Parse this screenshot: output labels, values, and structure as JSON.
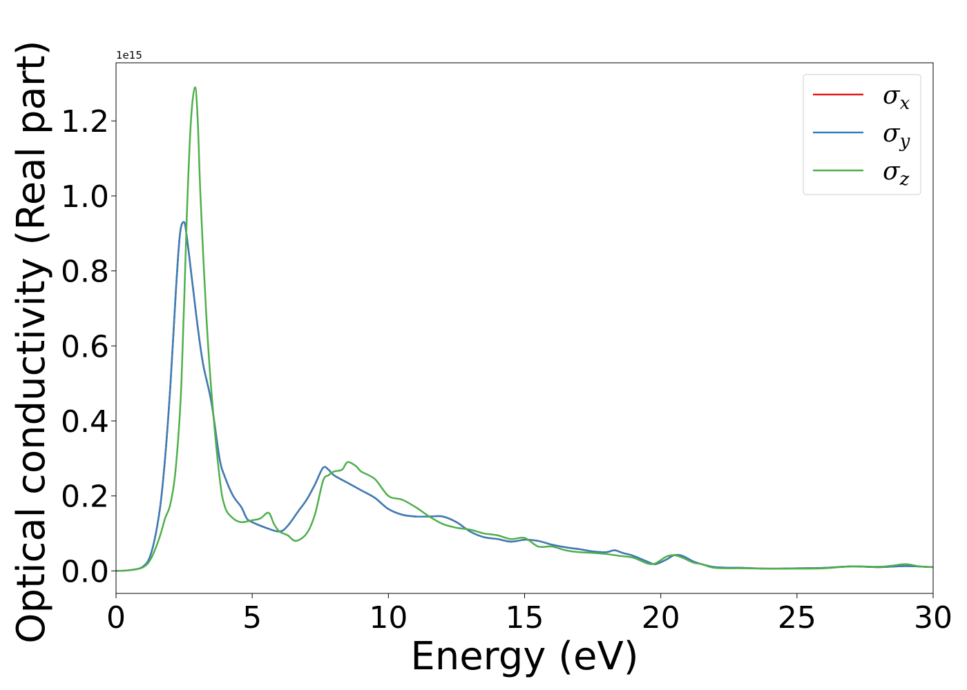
{
  "chart_data": {
    "type": "line",
    "title": "",
    "xlabel": "Energy (eV)",
    "ylabel": "Optical conductivity (Real part)",
    "y_offset_text": "1e15",
    "xlim": [
      0,
      30
    ],
    "ylim": [
      -0.06,
      1.355
    ],
    "x_ticks": [
      0,
      5,
      10,
      15,
      20,
      25,
      30
    ],
    "x_tick_labels": [
      "0",
      "5",
      "10",
      "15",
      "20",
      "25",
      "30"
    ],
    "y_ticks": [
      0.0,
      0.2,
      0.4,
      0.6,
      0.8,
      1.0,
      1.2
    ],
    "y_tick_labels": [
      "0.0",
      "0.2",
      "0.4",
      "0.6",
      "0.8",
      "1.0",
      "1.2"
    ],
    "grid": false,
    "legend_position": "top-right",
    "series": [
      {
        "name": "σx",
        "base": "σ",
        "sub": "x",
        "color": "#e41a1c",
        "x": [
          0,
          0.5,
          1.0,
          1.3,
          1.6,
          1.8,
          2.0,
          2.2,
          2.35,
          2.5,
          2.6,
          2.8,
          3.0,
          3.2,
          3.5,
          3.8,
          4.0,
          4.3,
          4.6,
          4.8,
          5.0,
          5.5,
          6.0,
          6.3,
          6.7,
          7.0,
          7.3,
          7.6,
          7.8,
          8.0,
          8.5,
          9.0,
          9.5,
          10.0,
          10.5,
          11.0,
          11.5,
          12.0,
          12.5,
          13.0,
          13.5,
          14.0,
          14.5,
          15.0,
          15.5,
          16.0,
          16.5,
          17.0,
          17.5,
          18.0,
          18.3,
          18.6,
          19.0,
          19.5,
          19.8,
          20.2,
          20.5,
          20.8,
          21.2,
          21.5,
          22.0,
          23.0,
          24.0,
          25.0,
          26.0,
          27.0,
          28.0,
          29.0,
          30.0
        ],
        "y": [
          0.0,
          0.002,
          0.012,
          0.05,
          0.16,
          0.3,
          0.5,
          0.75,
          0.9,
          0.93,
          0.89,
          0.77,
          0.65,
          0.55,
          0.45,
          0.3,
          0.25,
          0.2,
          0.17,
          0.14,
          0.13,
          0.115,
          0.105,
          0.12,
          0.16,
          0.19,
          0.23,
          0.275,
          0.27,
          0.255,
          0.235,
          0.215,
          0.195,
          0.165,
          0.15,
          0.145,
          0.145,
          0.145,
          0.13,
          0.105,
          0.09,
          0.085,
          0.078,
          0.083,
          0.08,
          0.07,
          0.063,
          0.058,
          0.052,
          0.05,
          0.055,
          0.048,
          0.04,
          0.025,
          0.018,
          0.03,
          0.042,
          0.04,
          0.025,
          0.018,
          0.01,
          0.008,
          0.006,
          0.007,
          0.008,
          0.012,
          0.01,
          0.013,
          0.01
        ]
      },
      {
        "name": "σy",
        "base": "σ",
        "sub": "y",
        "color": "#377eb8",
        "x": [
          0,
          0.5,
          1.0,
          1.3,
          1.6,
          1.8,
          2.0,
          2.2,
          2.35,
          2.5,
          2.6,
          2.8,
          3.0,
          3.2,
          3.5,
          3.8,
          4.0,
          4.3,
          4.6,
          4.8,
          5.0,
          5.5,
          6.0,
          6.3,
          6.7,
          7.0,
          7.3,
          7.6,
          7.8,
          8.0,
          8.5,
          9.0,
          9.5,
          10.0,
          10.5,
          11.0,
          11.5,
          12.0,
          12.5,
          13.0,
          13.5,
          14.0,
          14.5,
          15.0,
          15.5,
          16.0,
          16.5,
          17.0,
          17.5,
          18.0,
          18.3,
          18.6,
          19.0,
          19.5,
          19.8,
          20.2,
          20.5,
          20.8,
          21.2,
          21.5,
          22.0,
          23.0,
          24.0,
          25.0,
          26.0,
          27.0,
          28.0,
          29.0,
          30.0
        ],
        "y": [
          0.0,
          0.002,
          0.012,
          0.05,
          0.16,
          0.3,
          0.5,
          0.75,
          0.9,
          0.93,
          0.89,
          0.77,
          0.65,
          0.55,
          0.45,
          0.3,
          0.25,
          0.2,
          0.17,
          0.14,
          0.13,
          0.115,
          0.105,
          0.12,
          0.16,
          0.19,
          0.23,
          0.275,
          0.27,
          0.255,
          0.235,
          0.215,
          0.195,
          0.165,
          0.15,
          0.145,
          0.145,
          0.145,
          0.13,
          0.105,
          0.09,
          0.085,
          0.078,
          0.083,
          0.08,
          0.07,
          0.063,
          0.058,
          0.052,
          0.05,
          0.055,
          0.048,
          0.04,
          0.025,
          0.018,
          0.03,
          0.042,
          0.04,
          0.025,
          0.018,
          0.01,
          0.008,
          0.006,
          0.007,
          0.008,
          0.012,
          0.01,
          0.013,
          0.01
        ]
      },
      {
        "name": "σz",
        "base": "σ",
        "sub": "z",
        "color": "#4daf4a",
        "x": [
          0,
          0.5,
          1.0,
          1.3,
          1.6,
          1.8,
          2.0,
          2.2,
          2.4,
          2.6,
          2.75,
          2.9,
          3.0,
          3.1,
          3.3,
          3.5,
          3.8,
          4.0,
          4.3,
          4.6,
          5.0,
          5.3,
          5.6,
          5.8,
          6.0,
          6.3,
          6.6,
          7.0,
          7.3,
          7.6,
          7.8,
          8.0,
          8.3,
          8.5,
          8.8,
          9.0,
          9.5,
          10.0,
          10.5,
          11.0,
          11.5,
          12.0,
          12.5,
          13.0,
          13.5,
          14.0,
          14.5,
          15.0,
          15.5,
          16.0,
          16.5,
          17.0,
          17.5,
          18.0,
          18.5,
          19.0,
          19.5,
          19.8,
          20.2,
          20.5,
          20.8,
          21.2,
          21.5,
          22.0,
          23.0,
          24.0,
          25.0,
          26.0,
          27.0,
          28.0,
          28.5,
          29.0,
          29.5,
          30.0
        ],
        "y": [
          0.0,
          0.002,
          0.01,
          0.035,
          0.09,
          0.14,
          0.18,
          0.28,
          0.5,
          0.95,
          1.2,
          1.29,
          1.2,
          1.0,
          0.7,
          0.48,
          0.25,
          0.17,
          0.14,
          0.13,
          0.135,
          0.14,
          0.155,
          0.125,
          0.105,
          0.095,
          0.08,
          0.1,
          0.15,
          0.24,
          0.255,
          0.265,
          0.27,
          0.29,
          0.28,
          0.265,
          0.245,
          0.2,
          0.19,
          0.17,
          0.145,
          0.125,
          0.115,
          0.11,
          0.1,
          0.095,
          0.085,
          0.088,
          0.065,
          0.065,
          0.055,
          0.05,
          0.048,
          0.045,
          0.04,
          0.035,
          0.02,
          0.02,
          0.038,
          0.042,
          0.035,
          0.022,
          0.018,
          0.008,
          0.007,
          0.006,
          0.006,
          0.007,
          0.012,
          0.011,
          0.014,
          0.018,
          0.012,
          0.01
        ]
      }
    ]
  }
}
